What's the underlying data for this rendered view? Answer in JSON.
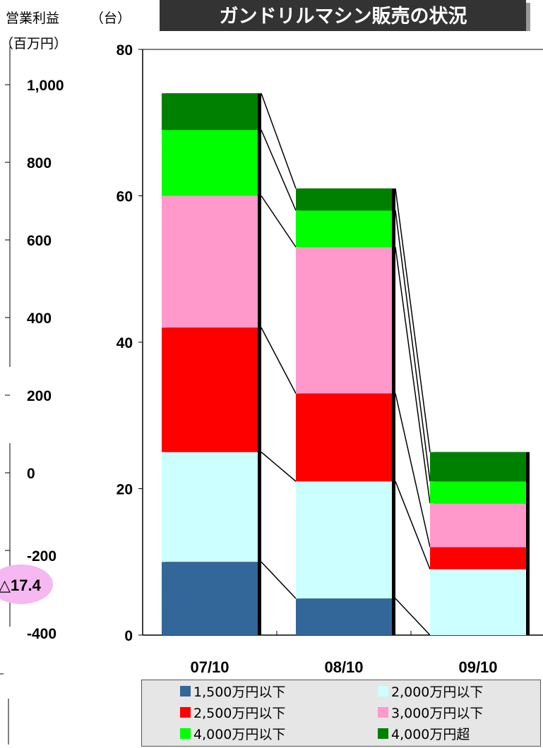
{
  "header": {
    "title": "ガンドリルマシン販売の状況",
    "left_axis_title_line1": "営業利益",
    "left_axis_title_line2": "（百万円）",
    "right_axis_unit": "（台）"
  },
  "left_axis": {
    "ticks": [
      "1,000",
      "800",
      "600",
      "400",
      "200",
      "0",
      "-200",
      "-400"
    ],
    "values": [
      1000,
      800,
      600,
      400,
      200,
      0,
      -200,
      -400
    ],
    "range": [
      -400,
      1100
    ]
  },
  "annotation": {
    "text": "△17.4",
    "color": "#f5b8f0"
  },
  "chart_data": {
    "type": "bar",
    "stacked": true,
    "title": "ガンドリルマシン販売の状況",
    "ylabel": "（台）",
    "ylim": [
      0,
      80
    ],
    "yticks": [
      0,
      20,
      40,
      60,
      80
    ],
    "categories": [
      "07/10",
      "08/10",
      "09/10"
    ],
    "series": [
      {
        "name": "1,500万円以下",
        "color": "#336699",
        "values": [
          10,
          5,
          0
        ]
      },
      {
        "name": "2,000万円以下",
        "color": "#ccffff",
        "values": [
          15,
          16,
          9
        ]
      },
      {
        "name": "2,500万円以下",
        "color": "#ff0000",
        "values": [
          17,
          12,
          3
        ]
      },
      {
        "name": "3,000万円以下",
        "color": "#ff99cc",
        "values": [
          18,
          20,
          6
        ]
      },
      {
        "name": "4,000万円以下",
        "color": "#00ff00",
        "values": [
          9,
          5,
          3
        ]
      },
      {
        "name": "4,000万円超",
        "color": "#008000",
        "values": [
          5,
          3,
          4
        ]
      }
    ],
    "legend_position": "bottom",
    "connector_lines": true
  }
}
